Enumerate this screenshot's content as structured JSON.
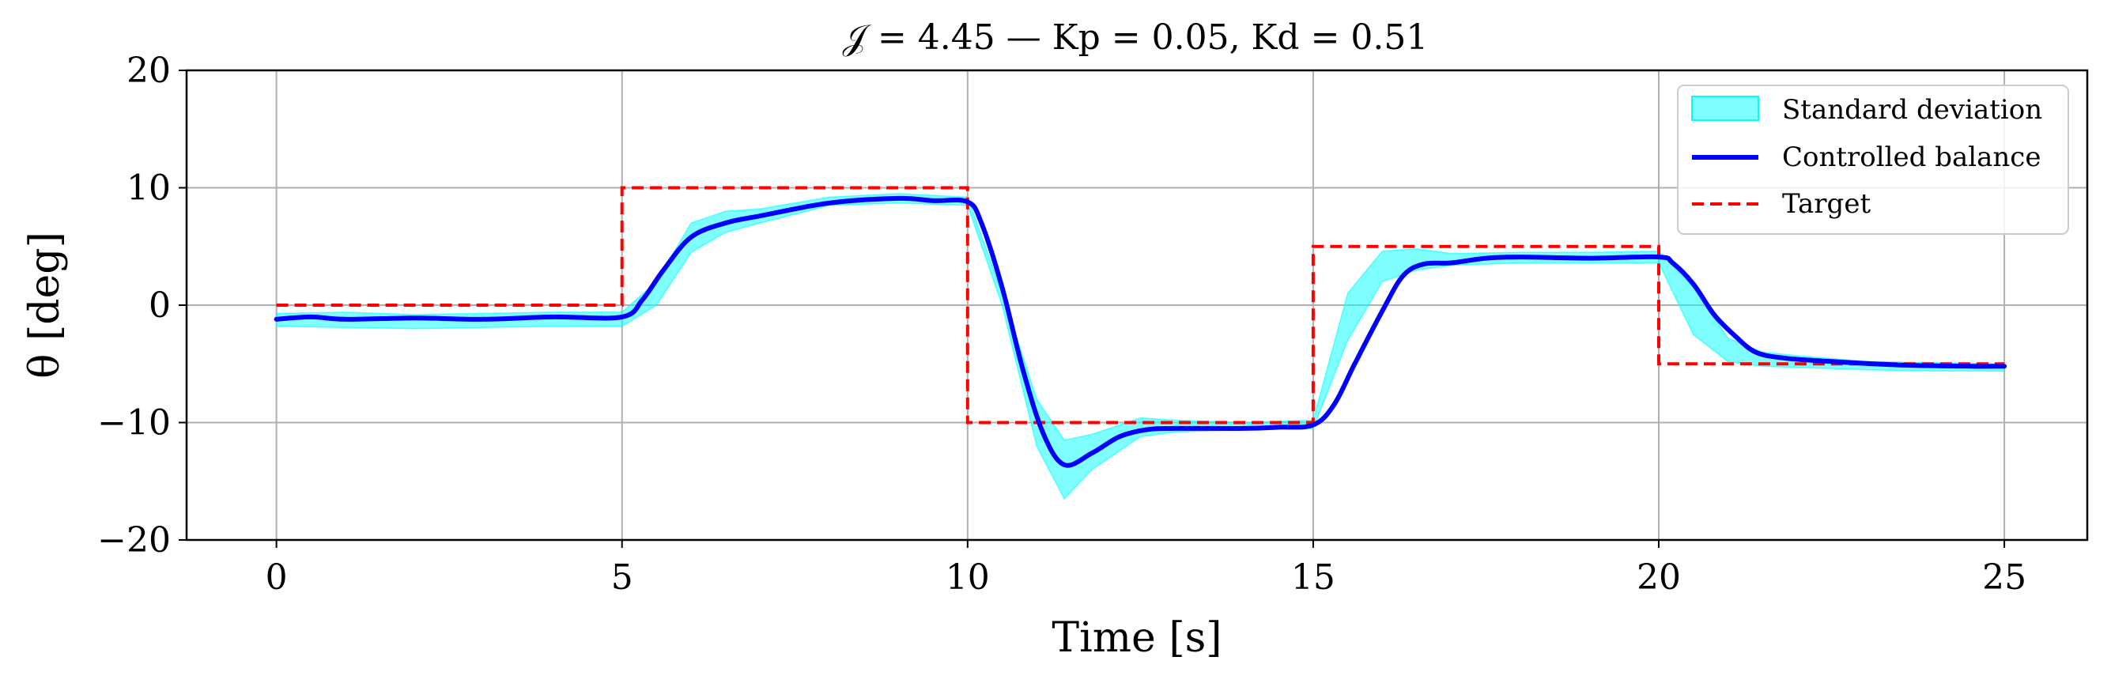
{
  "chart_data": {
    "type": "line",
    "title": "𝒥 = 4.45 — Kp = 0.05, Kd = 0.51",
    "xlabel": "Time [s]",
    "ylabel": "θ [deg]",
    "xlim": [
      -1.3,
      26.2
    ],
    "ylim": [
      -20,
      20
    ],
    "xticks": [
      0,
      5,
      10,
      15,
      20,
      25
    ],
    "yticks": [
      -20,
      -10,
      0,
      10,
      20
    ],
    "xtick_labels": [
      "0",
      "5",
      "10",
      "15",
      "20",
      "25"
    ],
    "ytick_labels": [
      "−20",
      "−10",
      "0",
      "10",
      "20"
    ],
    "grid": true,
    "legend_position": "top-right",
    "colors": {
      "band": "#00ffff",
      "balance": "#0000ff",
      "target": "#ff0000"
    },
    "series": [
      {
        "name": "Standard deviation",
        "style": "band",
        "x": [
          0,
          1,
          2,
          3,
          4,
          5,
          5.5,
          6,
          6.5,
          7,
          8,
          9,
          10,
          10.5,
          11,
          11.4,
          11.8,
          12.5,
          13,
          14,
          15,
          15.5,
          16,
          16.5,
          17,
          18,
          19,
          20,
          20.5,
          21,
          21.5,
          22,
          23,
          24,
          25
        ],
        "lower": [
          -1.8,
          -1.9,
          -2.0,
          -1.9,
          -1.8,
          -1.8,
          0.0,
          4.5,
          6.2,
          7.0,
          8.5,
          8.7,
          8.5,
          0.0,
          -12.0,
          -16.5,
          -14.0,
          -11.2,
          -10.8,
          -10.6,
          -10.5,
          -3.0,
          2.0,
          3.0,
          3.4,
          3.6,
          3.6,
          3.6,
          -2.5,
          -4.8,
          -5.2,
          -5.3,
          -5.5,
          -5.6,
          -5.6
        ],
        "upper": [
          -0.7,
          -0.6,
          -0.8,
          -0.7,
          -0.6,
          -0.6,
          2.0,
          7.0,
          8.0,
          8.2,
          9.2,
          9.5,
          9.2,
          1.0,
          -8.0,
          -11.5,
          -11.0,
          -9.6,
          -9.8,
          -10.0,
          -9.8,
          1.0,
          4.6,
          4.8,
          4.4,
          4.5,
          4.5,
          4.6,
          1.5,
          -2.8,
          -4.0,
          -4.3,
          -4.8,
          -4.9,
          -5.0
        ]
      },
      {
        "name": "Controlled balance",
        "style": "line",
        "x": [
          0,
          0.5,
          1,
          2,
          3,
          4,
          5,
          5.3,
          5.6,
          6,
          6.5,
          7,
          8,
          9,
          9.5,
          10,
          10.2,
          10.5,
          10.8,
          11.1,
          11.4,
          11.8,
          12.2,
          12.6,
          13,
          14,
          14.5,
          15,
          15.3,
          15.6,
          16,
          16.3,
          16.6,
          17,
          17.5,
          18,
          19,
          20,
          20.2,
          20.5,
          20.8,
          21.1,
          21.4,
          21.8,
          22.5,
          23.5,
          24.5,
          25
        ],
        "y": [
          -1.2,
          -1.0,
          -1.2,
          -1.1,
          -1.2,
          -1.0,
          -1.0,
          0.5,
          3.0,
          5.8,
          7.0,
          7.6,
          8.7,
          9.1,
          8.9,
          8.8,
          7.0,
          1.5,
          -5.5,
          -11.0,
          -13.6,
          -12.6,
          -11.2,
          -10.6,
          -10.5,
          -10.5,
          -10.4,
          -10.2,
          -8.5,
          -5.0,
          -0.5,
          2.5,
          3.5,
          3.6,
          4.0,
          4.1,
          4.0,
          4.1,
          3.6,
          1.8,
          -0.8,
          -2.6,
          -4.0,
          -4.5,
          -4.8,
          -5.1,
          -5.2,
          -5.2
        ]
      },
      {
        "name": "Target",
        "style": "dashed-step",
        "x": [
          0,
          5,
          5,
          10,
          10,
          15,
          15,
          20,
          20,
          25
        ],
        "y": [
          0,
          0,
          10,
          10,
          -10,
          -10,
          5,
          5,
          -5,
          -5
        ]
      }
    ]
  }
}
